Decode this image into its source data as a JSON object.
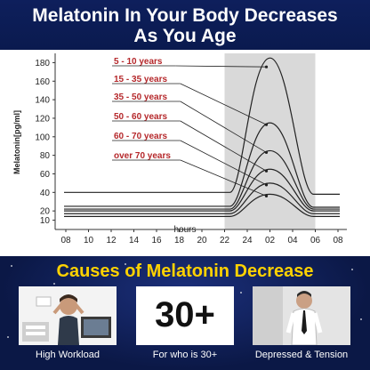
{
  "header": {
    "line1": "Melatonin In Your Body Decreases",
    "line2": "As You Age"
  },
  "chart_data": {
    "type": "line",
    "ylabel": "Melatonin[pg/ml]",
    "xlabel": "hours",
    "ylim": [
      0,
      190
    ],
    "yticks": [
      10,
      20,
      40,
      60,
      80,
      100,
      120,
      140,
      160,
      180
    ],
    "x_ticks": [
      "08",
      "10",
      "12",
      "14",
      "16",
      "18",
      "20",
      "22",
      "24",
      "02",
      "04",
      "06",
      "08"
    ],
    "shaded_region": {
      "from": "22",
      "to": "06"
    },
    "series": [
      {
        "name": "5 - 10 years",
        "baseline": 40,
        "peak": 185,
        "end": 38
      },
      {
        "name": "15 - 35 years",
        "baseline": 25,
        "peak": 115,
        "end": 24
      },
      {
        "name": "35 - 50 years",
        "baseline": 22,
        "peak": 85,
        "end": 22
      },
      {
        "name": "50 - 60 years",
        "baseline": 20,
        "peak": 65,
        "end": 20
      },
      {
        "name": "60 - 70 years",
        "baseline": 17,
        "peak": 50,
        "end": 17
      },
      {
        "name": "over 70 years",
        "baseline": 14,
        "peak": 38,
        "end": 14
      }
    ],
    "label_color": "#b5282b",
    "line_color": "#222222",
    "shade_color": "#d9d9d9"
  },
  "causes": {
    "title": "Causes of Melatonin Decrease",
    "cards": [
      {
        "caption": "High Workload",
        "image": "stressed-worker-photo"
      },
      {
        "caption": "For who is 30+",
        "stat": "30+"
      },
      {
        "caption": "Depressed & Tension",
        "image": "tense-man-photo"
      }
    ]
  },
  "colors": {
    "navy": "#0b1846",
    "yellow": "#ffd200",
    "white": "#ffffff"
  }
}
